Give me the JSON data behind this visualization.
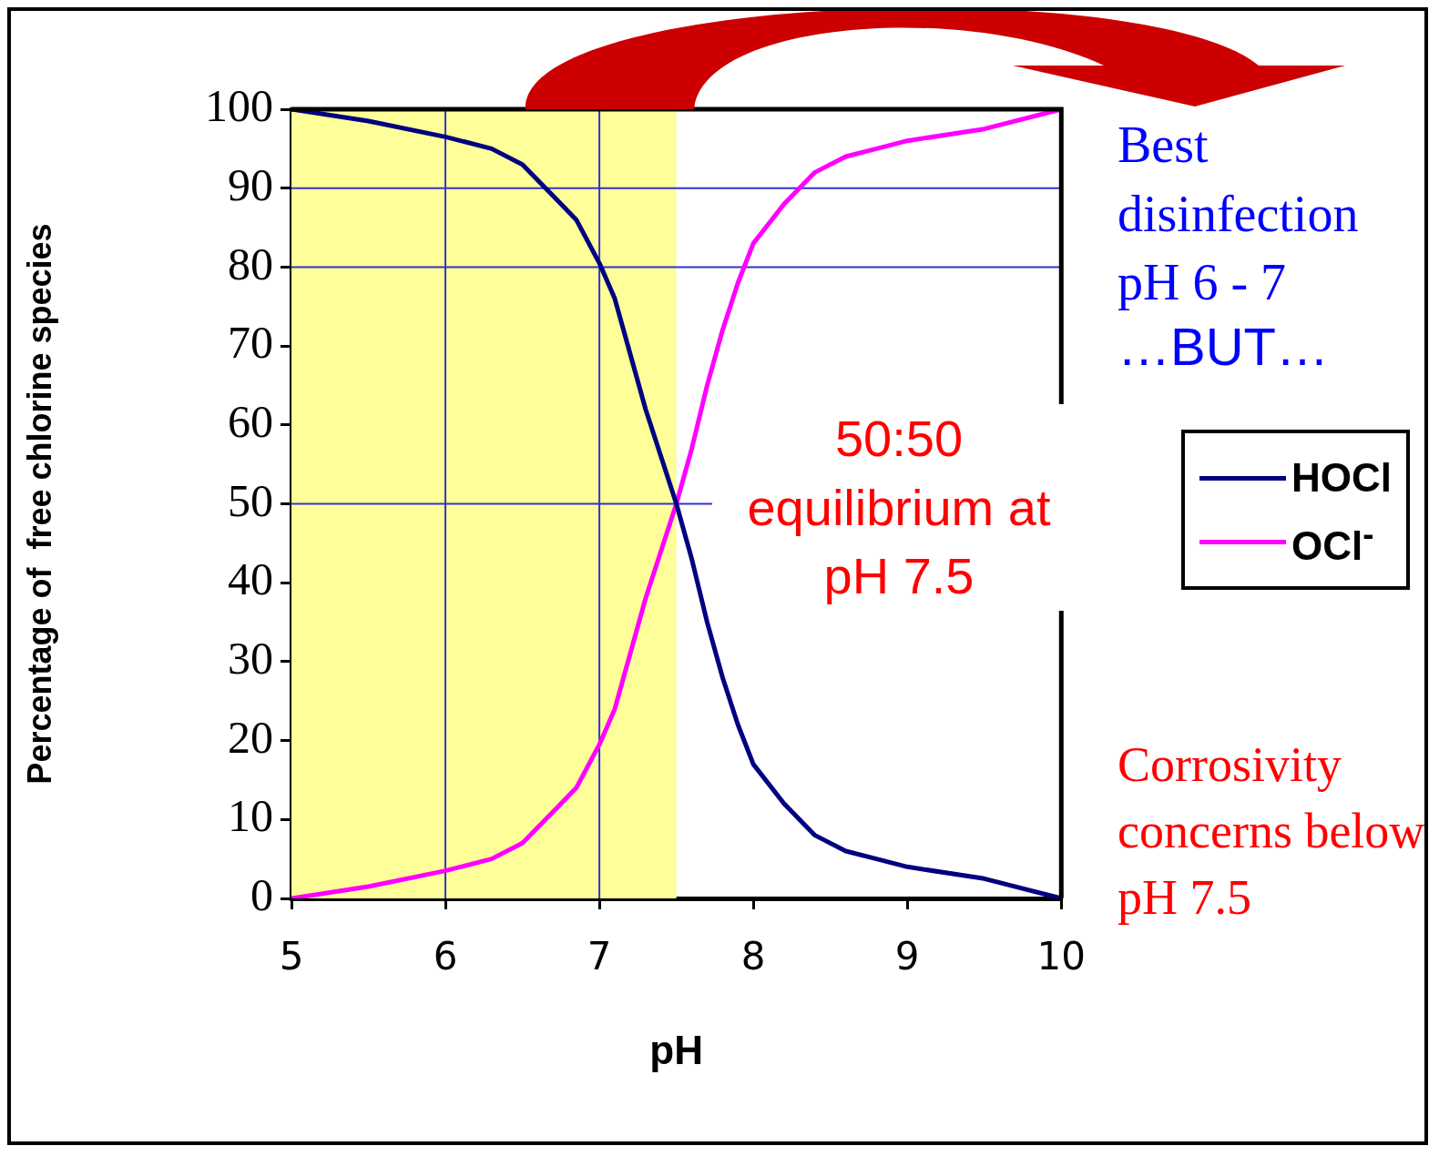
{
  "chart_data": {
    "type": "line",
    "xlabel": "pH",
    "ylabel": "Percentage of  free chlorine species",
    "xlim": [
      5,
      10
    ],
    "xticks": [
      5,
      6,
      7,
      8,
      9,
      10
    ],
    "ylim": [
      0,
      100
    ],
    "yticks": [
      0,
      10,
      20,
      30,
      40,
      50,
      60,
      70,
      80,
      90,
      100
    ],
    "grid": false,
    "legend": "right",
    "marker": "none",
    "line_style": "solid",
    "x": [
      5,
      5.5,
      6,
      6.3,
      6.5,
      6.7,
      6.85,
      7,
      7.1,
      7.2,
      7.3,
      7.4,
      7.5,
      7.6,
      7.7,
      7.8,
      7.9,
      8,
      8.2,
      8.4,
      8.6,
      8.8,
      9,
      9.5,
      10
    ],
    "series": [
      {
        "name": "HOCl",
        "color": "#000080",
        "values": [
          100,
          98.5,
          96.5,
          95,
          93,
          89,
          86,
          80.5,
          76,
          69,
          62,
          56,
          50,
          43,
          35,
          28,
          22,
          17,
          12,
          8,
          6,
          5,
          4,
          2.5,
          0
        ]
      },
      {
        "name": "OCl$^{-}$",
        "color": "#ff00ff",
        "values": [
          0,
          1.5,
          3.5,
          5,
          7,
          11,
          14,
          19.5,
          24,
          31,
          38,
          44,
          50,
          57,
          65,
          72,
          78,
          83,
          88,
          92,
          94,
          95,
          96,
          97.5,
          100
        ]
      }
    ],
    "bands": [
      {
        "axis": "x",
        "from": 5,
        "to": 7.5,
        "color": "#ffff99"
      }
    ],
    "ref_lines": [
      {
        "axis": "y",
        "value": 90,
        "color": "#3333cc"
      },
      {
        "axis": "y",
        "value": 80,
        "color": "#3333cc"
      },
      {
        "axis": "y",
        "value": 50,
        "color": "#3333cc"
      },
      {
        "axis": "x",
        "value": 6,
        "color": "#3333cc"
      },
      {
        "axis": "x",
        "value": 7,
        "color": "#3333cc"
      }
    ],
    "annotations": [
      "Best disinfection pH 6 - 7",
      "…BUT…",
      "50:50 equilibrium at pH 7.5",
      "Corrosivity concerns below pH 7.5"
    ]
  }
}
